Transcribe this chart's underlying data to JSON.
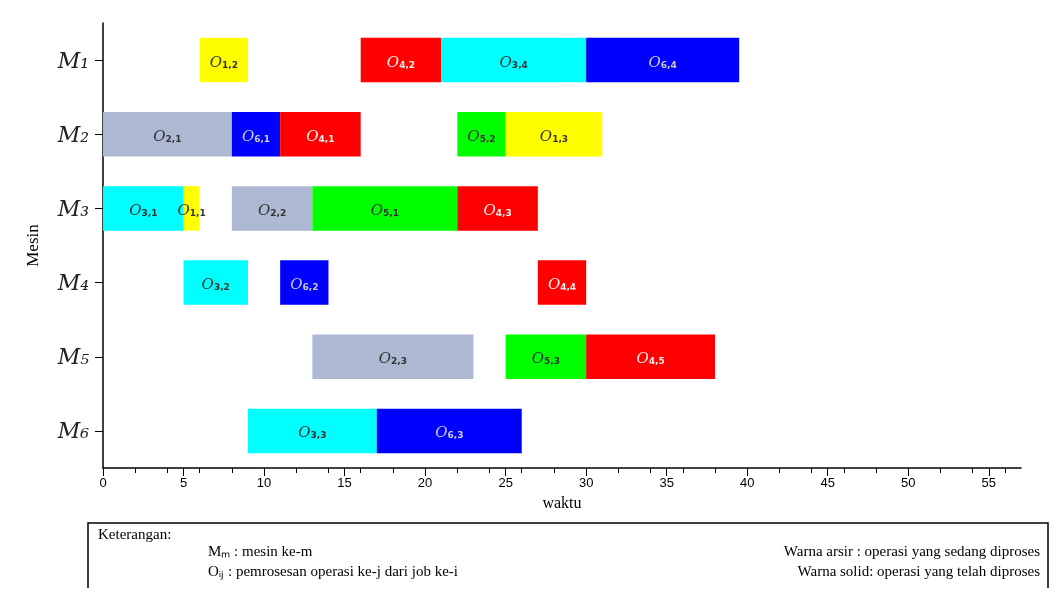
{
  "chart_data": {
    "type": "bar",
    "orientation": "horizontal",
    "ylabel": "Mesin",
    "xlabel": "waktu",
    "categories": [
      "M₁",
      "M₂",
      "M₃",
      "M₄",
      "M₅",
      "M₆"
    ],
    "xlim": [
      0,
      57
    ],
    "xticks": [
      0,
      5,
      10,
      15,
      20,
      25,
      30,
      35,
      40,
      45,
      50,
      55
    ],
    "series": [
      {
        "name": "O$_{1,2}$",
        "color": "#ffff00",
        "base": [
          6,
          null,
          null,
          null,
          null,
          null
        ],
        "values": [
          3,
          null,
          null,
          null,
          null,
          null
        ]
      },
      {
        "name": "O$_{4,2}$",
        "color": "#ff0000",
        "base": [
          16,
          null,
          null,
          null,
          null,
          null
        ],
        "values": [
          5,
          null,
          null,
          null,
          null,
          null
        ]
      },
      {
        "name": "O$_{3,4}$",
        "color": "#00ffff",
        "base": [
          21,
          null,
          null,
          null,
          null,
          null
        ],
        "values": [
          9,
          null,
          null,
          null,
          null,
          null
        ]
      },
      {
        "name": "O$_{6,4}$",
        "color": "#0000ff",
        "base": [
          30,
          null,
          null,
          null,
          null,
          null
        ],
        "values": [
          9.5,
          null,
          null,
          null,
          null,
          null
        ]
      },
      {
        "name": "O$_{2,1}$",
        "color": "#adb9d3",
        "base": [
          null,
          0,
          null,
          null,
          null,
          null
        ],
        "values": [
          null,
          8,
          null,
          null,
          null,
          null
        ]
      },
      {
        "name": "O$_{6,1}$",
        "color": "#0000ff",
        "base": [
          null,
          8,
          null,
          null,
          null,
          null
        ],
        "values": [
          null,
          3,
          null,
          null,
          null,
          null
        ]
      },
      {
        "name": "O$_{4,1}$",
        "color": "#ff0000",
        "base": [
          null,
          11,
          null,
          null,
          null,
          null
        ],
        "values": [
          null,
          5,
          null,
          null,
          null,
          null
        ]
      },
      {
        "name": "O$_{5,2}$",
        "color": "#00ff00",
        "base": [
          null,
          22,
          null,
          null,
          null,
          null
        ],
        "values": [
          null,
          3,
          null,
          null,
          null,
          null
        ]
      },
      {
        "name": "O$_{1,3}$",
        "color": "#ffff00",
        "base": [
          null,
          25,
          null,
          null,
          null,
          null
        ],
        "values": [
          null,
          6,
          null,
          null,
          null,
          null
        ]
      },
      {
        "name": "O$_{3,1}$",
        "color": "#00ffff",
        "base": [
          null,
          null,
          0,
          null,
          null,
          null
        ],
        "values": [
          null,
          null,
          5,
          null,
          null,
          null
        ]
      },
      {
        "name": "O$_{1,1}$",
        "color": "#ffff00",
        "base": [
          null,
          null,
          5,
          null,
          null,
          null
        ],
        "values": [
          null,
          null,
          1,
          null,
          null,
          null
        ]
      },
      {
        "name": "O$_{2,2}$",
        "color": "#adb9d3",
        "base": [
          null,
          null,
          8,
          null,
          null,
          null
        ],
        "values": [
          null,
          null,
          5,
          null,
          null,
          null
        ]
      },
      {
        "name": "O$_{5,1}$",
        "color": "#00ff00",
        "base": [
          null,
          null,
          13,
          null,
          null,
          null
        ],
        "values": [
          null,
          null,
          9,
          null,
          null,
          null
        ]
      },
      {
        "name": "O$_{4,3}$",
        "color": "#ff0000",
        "base": [
          null,
          null,
          22,
          null,
          null,
          null
        ],
        "values": [
          null,
          null,
          5,
          null,
          null,
          null
        ]
      },
      {
        "name": "O$_{3,2}$",
        "color": "#00ffff",
        "base": [
          null,
          null,
          null,
          5,
          null,
          null
        ],
        "values": [
          null,
          null,
          null,
          4,
          null,
          null
        ]
      },
      {
        "name": "O$_{6,2}$",
        "color": "#0000ff",
        "base": [
          null,
          null,
          null,
          11,
          null,
          null
        ],
        "values": [
          null,
          null,
          null,
          3,
          null,
          null
        ]
      },
      {
        "name": "O$_{4,4}$",
        "color": "#ff0000",
        "base": [
          null,
          null,
          null,
          27,
          null,
          null
        ],
        "values": [
          null,
          null,
          null,
          3,
          null,
          null
        ]
      },
      {
        "name": "O$_{2,3}$",
        "color": "#adb9d3",
        "base": [
          null,
          null,
          null,
          null,
          13,
          null
        ],
        "values": [
          null,
          null,
          null,
          null,
          10,
          null
        ]
      },
      {
        "name": "O$_{5,3}$",
        "color": "#00ff00",
        "base": [
          null,
          null,
          null,
          null,
          25,
          null
        ],
        "values": [
          null,
          null,
          null,
          null,
          5,
          null
        ]
      },
      {
        "name": "O$_{4,5}$",
        "color": "#ff0000",
        "base": [
          null,
          null,
          null,
          null,
          30,
          null
        ],
        "values": [
          null,
          null,
          null,
          null,
          8,
          null
        ]
      },
      {
        "name": "O$_{3,3}$",
        "color": "#00ffff",
        "base": [
          null,
          null,
          null,
          null,
          null,
          9
        ],
        "values": [
          null,
          null,
          null,
          null,
          null,
          8
        ]
      },
      {
        "name": "O$_{6,3}$",
        "color": "#0000ff",
        "base": [
          null,
          null,
          null,
          null,
          null,
          17
        ],
        "values": [
          null,
          null,
          null,
          null,
          null,
          9
        ]
      }
    ],
    "annotations": [
      "Keterangan:",
      "Mₘ : mesin ke-m",
      "Oᵢⱼ : pemrosesan operasi ke-j dari job ke-i",
      "Warna arsir : operasi yang sedang diproses",
      "Warna solid: operasi yang telah diproses"
    ]
  }
}
